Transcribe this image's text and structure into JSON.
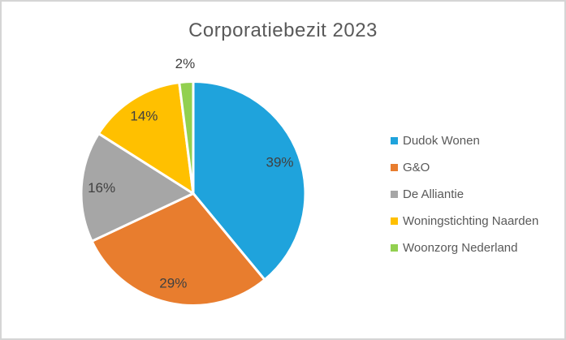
{
  "window": {
    "background": "#FFFFFF",
    "frame_border_color": "#D5D5D5"
  },
  "chart_data": {
    "type": "pie",
    "title": "Corporatiebezit 2023",
    "categories": [
      "Dudok Wonen",
      "G&O",
      "De Alliantie",
      "Woningstichting Naarden",
      "Woonzorg Nederland"
    ],
    "values": [
      39,
      29,
      16,
      14,
      2
    ],
    "data_labels": [
      "39%",
      "29%",
      "16%",
      "14%",
      "2%"
    ],
    "colors": [
      "#1FA3DC",
      "#E87D2E",
      "#A6A6A6",
      "#FFC000",
      "#92D050"
    ],
    "start_angle_deg": 0,
    "direction": "clockwise",
    "legend_position": "right",
    "grid": false,
    "title_color": "#595959",
    "legend_text_color": "#595959",
    "data_label_color": "#404040",
    "slice_border_color": "#FFFFFF"
  }
}
